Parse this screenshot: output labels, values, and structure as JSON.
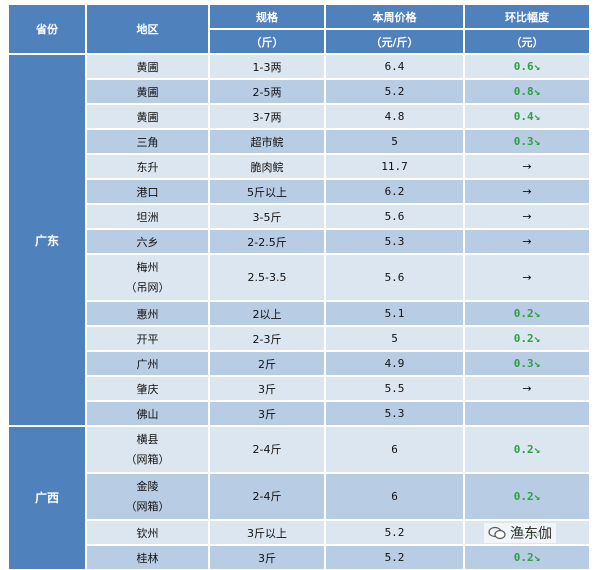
{
  "header": {
    "col_province": "省份",
    "col_region": "地区",
    "col_spec": [
      "规格",
      "（斤）"
    ],
    "col_price": [
      "本周价格",
      "（元/斤）"
    ],
    "col_change": [
      "环比幅度",
      "（元）"
    ]
  },
  "provinces": [
    {
      "name": "广东",
      "rows": [
        {
          "region": [
            "黄圃"
          ],
          "spec": "1-3两",
          "price": "6.4",
          "change": "0.6↘",
          "trend": "down"
        },
        {
          "region": [
            "黄圃"
          ],
          "spec": "2-5两",
          "price": "5.2",
          "change": "0.8↘",
          "trend": "down"
        },
        {
          "region": [
            "黄圃"
          ],
          "spec": "3-7两",
          "price": "4.8",
          "change": "0.4↘",
          "trend": "down"
        },
        {
          "region": [
            "三角"
          ],
          "spec": "超市鲩",
          "price": "5",
          "change": "0.3↘",
          "trend": "down"
        },
        {
          "region": [
            "东升"
          ],
          "spec": "脆肉鲩",
          "price": "11.7",
          "change": "→",
          "trend": "flat"
        },
        {
          "region": [
            "港口"
          ],
          "spec": "5斤以上",
          "price": "6.2",
          "change": "→",
          "trend": "flat"
        },
        {
          "region": [
            "坦洲"
          ],
          "spec": "3-5斤",
          "price": "5.6",
          "change": "→",
          "trend": "flat"
        },
        {
          "region": [
            "六乡"
          ],
          "spec": "2-2.5斤",
          "price": "5.3",
          "change": "→",
          "trend": "flat"
        },
        {
          "region": [
            "梅州",
            "（吊网）"
          ],
          "spec": "2.5-3.5",
          "price": "5.6",
          "change": "→",
          "trend": "flat"
        },
        {
          "region": [
            "惠州"
          ],
          "spec": "2以上",
          "price": "5.1",
          "change": "0.2↘",
          "trend": "down"
        },
        {
          "region": [
            "开平"
          ],
          "spec": "2-3斤",
          "price": "5",
          "change": "0.2↘",
          "trend": "down"
        },
        {
          "region": [
            "广州"
          ],
          "spec": "2斤",
          "price": "4.9",
          "change": "0.3↘",
          "trend": "down"
        },
        {
          "region": [
            "肇庆"
          ],
          "spec": "3斤",
          "price": "5.5",
          "change": "→",
          "trend": "flat"
        },
        {
          "region": [
            "佛山"
          ],
          "spec": "3斤",
          "price": "5.3",
          "change": "",
          "trend": "none"
        }
      ]
    },
    {
      "name": "广西",
      "rows": [
        {
          "region": [
            "横县",
            "（网箱）"
          ],
          "spec": "2-4斤",
          "price": "6",
          "change": "0.2↘",
          "trend": "down"
        },
        {
          "region": [
            "金陵",
            "（网箱）"
          ],
          "spec": "2-4斤",
          "price": "6",
          "change": "0.2↘",
          "trend": "down"
        },
        {
          "region": [
            "钦州"
          ],
          "spec": "3斤以上",
          "price": "5.2",
          "change": "0.1↘",
          "trend": "down"
        },
        {
          "region": [
            "桂林"
          ],
          "spec": "3斤",
          "price": "5.2",
          "change": "0.2↘",
          "trend": "down"
        }
      ]
    }
  ],
  "watermark": {
    "text": "渔东伽",
    "icon": "chat-bubble-icon"
  },
  "colors": {
    "header": "#4f81bd",
    "row_light": "#dce6f1",
    "row_dark": "#b8cce4",
    "down": "#2ea043"
  }
}
